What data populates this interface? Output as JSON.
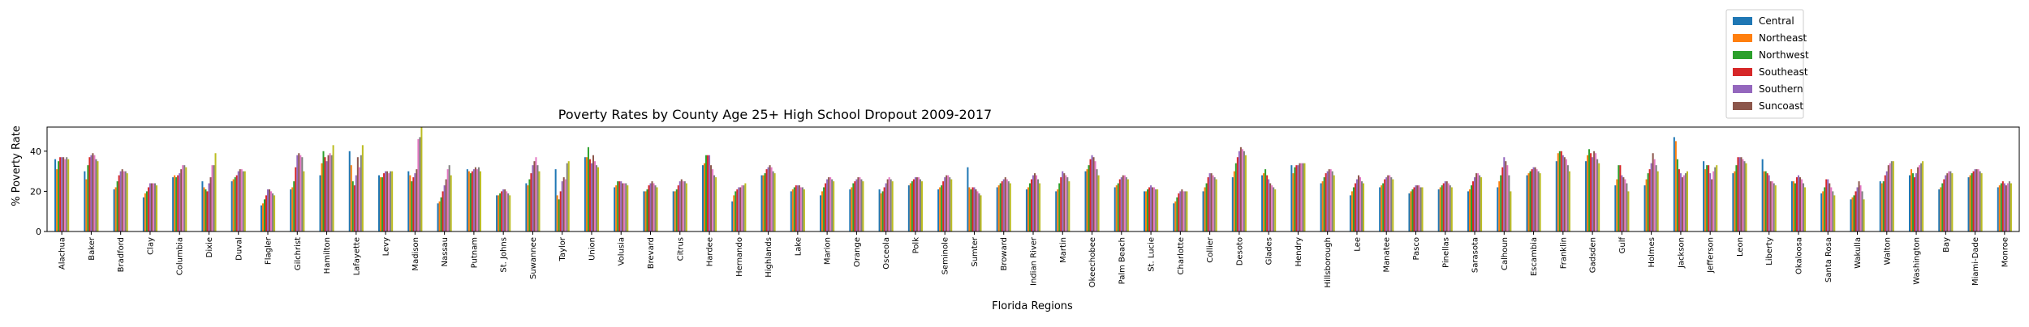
{
  "chart_data": {
    "type": "bar",
    "title": "Poverty Rates by County Age 25+ High School Dropout 2009-2017",
    "xlabel": "Florida Regions",
    "ylabel": "% Poverty Rate",
    "ylim": [
      0,
      52
    ],
    "yticks": [
      0,
      20,
      40
    ],
    "grid": false,
    "legend_position": "top-right, above plot",
    "legend": [
      "Central",
      "Northeast",
      "Northwest",
      "Southeast",
      "Southern",
      "Suncoast"
    ],
    "bar_colors": [
      "#1f77b4",
      "#ff7f0e",
      "#2ca02c",
      "#d62728",
      "#9467bd",
      "#8c564b",
      "#e377c2",
      "#7f7f7f",
      "#bcbd22"
    ],
    "categories": [
      "Alachua",
      "Baker",
      "Bradford",
      "Clay",
      "Columbia",
      "Dixie",
      "Duval",
      "Flagler",
      "Gilchrist",
      "Hamilton",
      "Lafayette",
      "Levy",
      "Madison",
      "Nassau",
      "Putnam",
      "St. Johns",
      "Suwannee",
      "Taylor",
      "Union",
      "Volusia",
      "Brevard",
      "Citrus",
      "Hardee",
      "Hernando",
      "Highlands",
      "Lake",
      "Marion",
      "Orange",
      "Osceola",
      "Polk",
      "Seminole",
      "Sumter",
      "Broward",
      "Indian River",
      "Martin",
      "Okeechobee",
      "Palm Beach",
      "St. Lucie",
      "Charlotte",
      "Collier",
      "Desoto",
      "Glades",
      "Hendry",
      "Hillsborough",
      "Lee",
      "Manatee",
      "Pasco",
      "Pinellas",
      "Sarasota",
      "Calhoun",
      "Escambia",
      "Franklin",
      "Gadsden",
      "Gulf",
      "Holmes",
      "Jackson",
      "Jefferson",
      "Leon",
      "Liberty",
      "Okaloosa",
      "Santa Rosa",
      "Wakulla",
      "Walton",
      "Washington",
      "Bay",
      "Miami-Dade",
      "Monroe"
    ],
    "values": [
      [
        36,
        31,
        35,
        37,
        37,
        37,
        36,
        37,
        36
      ],
      [
        30,
        26,
        33,
        37,
        38,
        39,
        38,
        36,
        35
      ],
      [
        21,
        22,
        25,
        28,
        30,
        31,
        30,
        30,
        29
      ],
      [
        17,
        19,
        20,
        22,
        24,
        24,
        24,
        24,
        23
      ],
      [
        27,
        28,
        27,
        28,
        29,
        31,
        33,
        33,
        32
      ],
      [
        25,
        22,
        21,
        20,
        24,
        27,
        33,
        33,
        39
      ],
      [
        25,
        26,
        27,
        28,
        30,
        31,
        31,
        30,
        30
      ],
      [
        13,
        14,
        16,
        18,
        21,
        21,
        20,
        19,
        18
      ],
      [
        21,
        22,
        25,
        32,
        38,
        39,
        38,
        37,
        30
      ],
      [
        28,
        34,
        40,
        37,
        35,
        38,
        39,
        38,
        43
      ],
      [
        40,
        33,
        25,
        23,
        28,
        37,
        32,
        38,
        43
      ],
      [
        28,
        27,
        27,
        29,
        30,
        30,
        29,
        30,
        30
      ],
      [
        30,
        28,
        25,
        27,
        29,
        31,
        46,
        47,
        52
      ],
      [
        14,
        15,
        17,
        20,
        23,
        26,
        31,
        33,
        28
      ],
      [
        31,
        30,
        29,
        30,
        31,
        32,
        31,
        32,
        30
      ],
      [
        18,
        18,
        19,
        20,
        21,
        21,
        20,
        19,
        18
      ],
      [
        24,
        23,
        26,
        29,
        33,
        35,
        37,
        33,
        30
      ],
      [
        31,
        18,
        16,
        20,
        25,
        27,
        26,
        34,
        35
      ],
      [
        37,
        37,
        42,
        36,
        34,
        38,
        35,
        33,
        32
      ],
      [
        22,
        23,
        25,
        25,
        25,
        24,
        24,
        24,
        23
      ],
      [
        20,
        20,
        21,
        23,
        24,
        25,
        24,
        23,
        22
      ],
      [
        20,
        20,
        21,
        23,
        25,
        26,
        25,
        25,
        24
      ],
      [
        33,
        34,
        38,
        38,
        38,
        33,
        31,
        28,
        27
      ],
      [
        15,
        18,
        20,
        21,
        22,
        22,
        23,
        23,
        24
      ],
      [
        28,
        28,
        29,
        31,
        32,
        33,
        32,
        30,
        29
      ],
      [
        20,
        21,
        22,
        23,
        23,
        23,
        22,
        22,
        21
      ],
      [
        18,
        20,
        22,
        24,
        26,
        27,
        27,
        26,
        25
      ],
      [
        21,
        22,
        24,
        25,
        26,
        27,
        27,
        26,
        25
      ],
      [
        21,
        19,
        20,
        22,
        24,
        26,
        27,
        26,
        25
      ],
      [
        23,
        24,
        25,
        26,
        27,
        27,
        27,
        26,
        25
      ],
      [
        21,
        22,
        23,
        25,
        27,
        28,
        28,
        27,
        26
      ],
      [
        32,
        22,
        21,
        22,
        22,
        21,
        20,
        19,
        18
      ],
      [
        22,
        23,
        24,
        25,
        26,
        27,
        26,
        25,
        24
      ],
      [
        21,
        22,
        24,
        26,
        28,
        29,
        28,
        26,
        24
      ],
      [
        20,
        21,
        24,
        27,
        30,
        29,
        28,
        27,
        25
      ],
      [
        30,
        31,
        33,
        36,
        38,
        37,
        35,
        31,
        28
      ],
      [
        22,
        23,
        24,
        26,
        27,
        28,
        28,
        27,
        26
      ],
      [
        20,
        20,
        21,
        22,
        23,
        22,
        22,
        21,
        21
      ],
      [
        14,
        15,
        17,
        19,
        20,
        21,
        20,
        20,
        20
      ],
      [
        20,
        22,
        24,
        27,
        29,
        29,
        28,
        27,
        26
      ],
      [
        27,
        30,
        34,
        37,
        40,
        42,
        41,
        40,
        38
      ],
      [
        28,
        29,
        31,
        28,
        26,
        24,
        23,
        22,
        21
      ],
      [
        33,
        29,
        32,
        33,
        33,
        34,
        34,
        34,
        34
      ],
      [
        24,
        25,
        27,
        29,
        30,
        31,
        31,
        30,
        28
      ],
      [
        18,
        20,
        22,
        24,
        26,
        28,
        27,
        25,
        24
      ],
      [
        22,
        23,
        24,
        26,
        27,
        28,
        28,
        27,
        26
      ],
      [
        19,
        20,
        21,
        22,
        23,
        23,
        23,
        22,
        22
      ],
      [
        21,
        22,
        23,
        24,
        25,
        25,
        24,
        23,
        22
      ],
      [
        20,
        21,
        23,
        25,
        27,
        29,
        29,
        28,
        27
      ],
      [
        22,
        25,
        28,
        32,
        37,
        35,
        33,
        28,
        20
      ],
      [
        28,
        29,
        30,
        31,
        32,
        32,
        31,
        30,
        29
      ],
      [
        35,
        39,
        40,
        40,
        38,
        37,
        36,
        33,
        30
      ],
      [
        35,
        38,
        41,
        39,
        37,
        40,
        39,
        36,
        34
      ],
      [
        23,
        26,
        33,
        33,
        28,
        27,
        26,
        24,
        20
      ],
      [
        23,
        26,
        29,
        31,
        34,
        39,
        36,
        33,
        30
      ],
      [
        47,
        45,
        36,
        31,
        29,
        27,
        28,
        29,
        30
      ],
      [
        35,
        31,
        33,
        33,
        29,
        26,
        30,
        32,
        33
      ],
      [
        29,
        30,
        33,
        37,
        37,
        37,
        36,
        35,
        34
      ],
      [
        36,
        30,
        30,
        29,
        28,
        25,
        25,
        24,
        23
      ],
      [
        25,
        25,
        24,
        27,
        28,
        27,
        26,
        24,
        22
      ],
      [
        19,
        20,
        22,
        26,
        26,
        24,
        22,
        20,
        18
      ],
      [
        16,
        17,
        18,
        20,
        22,
        25,
        23,
        20,
        16
      ],
      [
        25,
        24,
        25,
        28,
        30,
        33,
        34,
        35,
        35
      ],
      [
        28,
        31,
        29,
        27,
        29,
        32,
        33,
        34,
        35
      ],
      [
        21,
        22,
        24,
        26,
        28,
        29,
        30,
        30,
        29
      ],
      [
        27,
        28,
        29,
        30,
        31,
        31,
        31,
        30,
        29
      ],
      [
        22,
        23,
        24,
        25,
        24,
        23,
        24,
        25,
        24
      ]
    ]
  }
}
